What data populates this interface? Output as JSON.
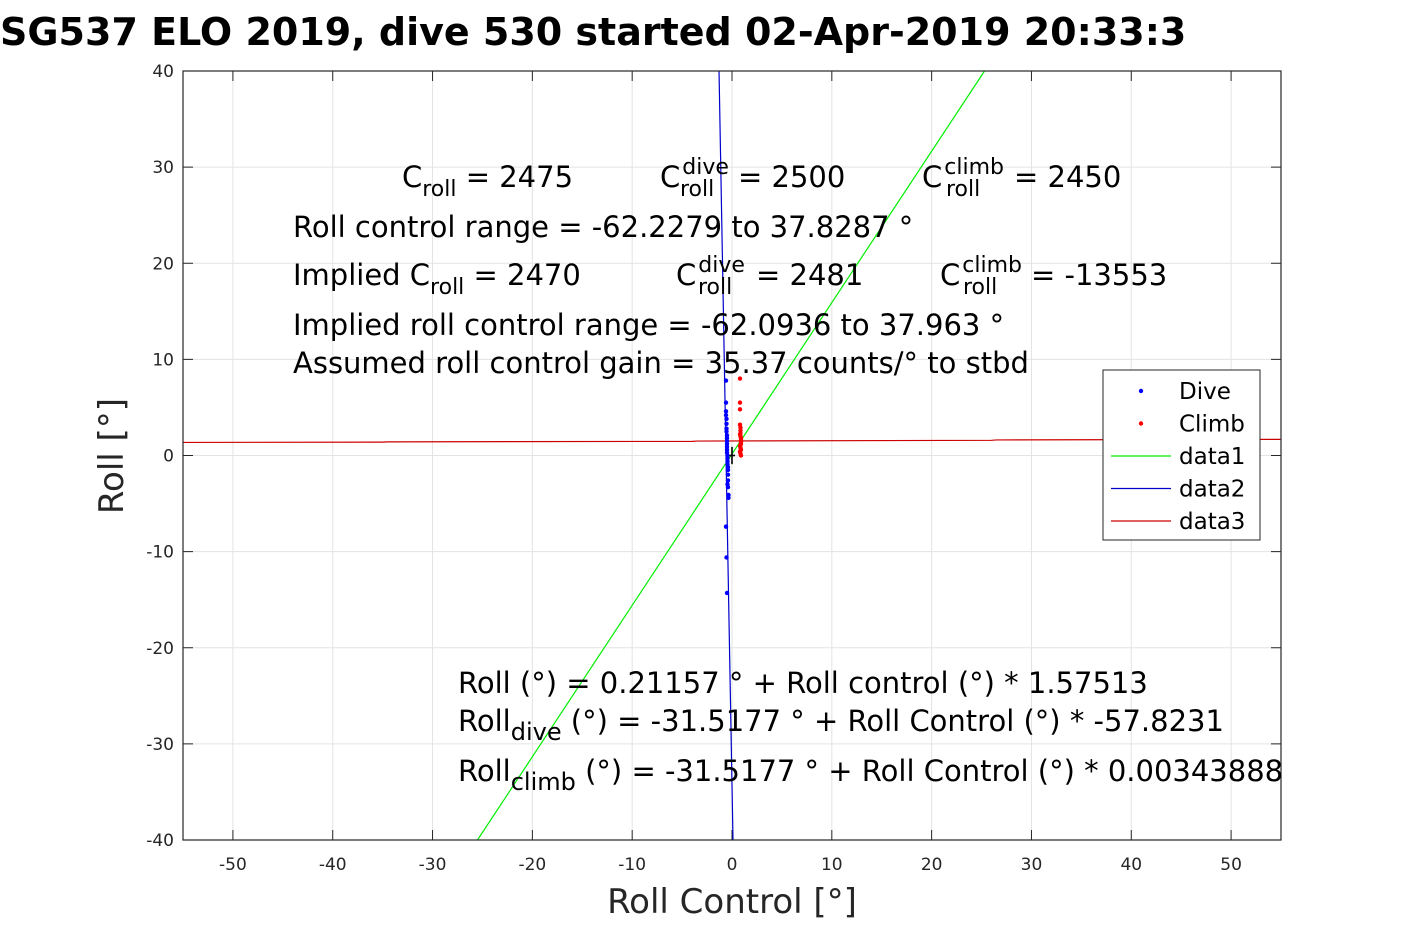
{
  "chart_data": {
    "type": "scatter",
    "title": "SG537 ELO 2019, dive 530 started 02-Apr-2019 20:33:3",
    "xlabel": "Roll Control [°]",
    "ylabel": "Roll [°]",
    "xlim": [
      -55,
      55
    ],
    "ylim": [
      -40,
      40
    ],
    "xticks": [
      -50,
      -40,
      -30,
      -20,
      -10,
      0,
      10,
      20,
      30,
      40,
      50
    ],
    "yticks": [
      -40,
      -30,
      -20,
      -10,
      0,
      10,
      20,
      30,
      40
    ],
    "xtick_labels": [
      "-50",
      "-40",
      "-30",
      "-20",
      "-10",
      "0",
      "10",
      "20",
      "30",
      "40",
      "50"
    ],
    "ytick_labels": [
      "-40",
      "-30",
      "-20",
      "-10",
      "0",
      "10",
      "20",
      "30",
      "40"
    ],
    "grid": true,
    "legend_position": "right",
    "series": [
      {
        "name": "Dive",
        "kind": "points",
        "color": "#0000ff",
        "x": [
          -0.6,
          -0.6,
          -0.6,
          -0.6,
          -0.55,
          -0.55,
          -0.55,
          -0.55,
          -0.5,
          -0.5,
          -0.5,
          -0.5,
          -0.5,
          -0.5,
          -0.5,
          -0.45,
          -0.45,
          -0.45,
          -0.45,
          -0.4,
          -0.4,
          -0.4,
          -0.4,
          -0.4,
          -0.35,
          -0.35,
          -0.6,
          -0.55,
          -0.5,
          -0.45
        ],
        "y": [
          7.8,
          5.5,
          4.6,
          4.2,
          3.8,
          3.3,
          2.8,
          2.5,
          2.1,
          1.8,
          1.5,
          1.2,
          0.9,
          0.6,
          0.3,
          0.0,
          -0.3,
          -0.6,
          -0.9,
          -1.2,
          -1.5,
          -2.0,
          -2.6,
          -3.3,
          -4.1,
          -4.4,
          -7.4,
          -10.6,
          -14.3,
          -3.0
        ]
      },
      {
        "name": "Climb",
        "kind": "points",
        "color": "#ff0000",
        "x": [
          0.8,
          0.8,
          0.8,
          0.8,
          0.85,
          0.85,
          0.85,
          0.85,
          0.9,
          0.9,
          0.9,
          0.9,
          0.8,
          0.85,
          0.9,
          0.8,
          0.85,
          0.9,
          0.8,
          0.85
        ],
        "y": [
          8.0,
          5.5,
          4.8,
          3.2,
          2.9,
          2.6,
          2.3,
          2.0,
          1.8,
          1.6,
          1.4,
          1.2,
          1.0,
          0.8,
          0.6,
          0.4,
          0.2,
          0.0,
          2.2,
          1.1
        ]
      },
      {
        "name": "data1",
        "kind": "line",
        "color": "#00ee00",
        "x": [
          -25.5,
          25.3
        ],
        "y": [
          -40,
          40
        ]
      },
      {
        "name": "data2",
        "kind": "line",
        "color": "#0000cc",
        "x": [
          -1.3,
          0.1
        ],
        "y": [
          40,
          -40
        ]
      },
      {
        "name": "data3",
        "kind": "line",
        "color": "#cc0000",
        "x": [
          -55,
          -35,
          -34.5,
          -4,
          -3.5,
          26,
          26.5,
          55
        ],
        "y": [
          1.36,
          1.39,
          1.42,
          1.47,
          1.5,
          1.58,
          1.62,
          1.68
        ]
      },
      {
        "name": "",
        "kind": "line",
        "color": "#000000",
        "x": [
          -0.3,
          0.3
        ],
        "y": [
          0,
          0
        ]
      },
      {
        "name": "",
        "kind": "line",
        "color": "#000000",
        "x": [
          0,
          0
        ],
        "y": [
          -0.9,
          0.9
        ]
      }
    ],
    "annotations": {
      "c_roll": {
        "base": "C",
        "sub": "roll",
        "rest": " = 2475"
      },
      "c_roll_dive": {
        "base": "C",
        "sup": "dive",
        "sub": "roll",
        "rest": " = 2500"
      },
      "c_roll_climb": {
        "base": "C",
        "sup": "climb",
        "sub": "roll",
        "rest": " = 2450"
      },
      "roll_control_range": "Roll control range = -62.2279 to 37.8287 °",
      "implied_c_roll": {
        "base": "Implied C",
        "sub": "roll",
        "rest": " = 2470"
      },
      "implied_c_roll_dive": {
        "base": "C",
        "sup": "dive",
        "sub": "roll",
        "rest": " = 2481"
      },
      "implied_c_roll_climb": {
        "base": "C",
        "sup": "climb",
        "sub": "roll",
        "rest": " = -13553"
      },
      "implied_range": "Implied roll control range = -62.0936 to 37.963 °",
      "gain": "Assumed roll control gain = 35.37 counts/° to stbd",
      "fit_all": "Roll (°) = 0.21157 ° + Roll control (°) * 1.57513",
      "fit_dive": {
        "base": "Roll",
        "sub": "dive",
        "rest": " (°) = -31.5177 ° + Roll Control (°) * -57.8231"
      },
      "fit_climb": {
        "base": "Roll",
        "sub": "climb",
        "rest": " (°) = -31.5177 ° + Roll Control (°) * 0.00343888"
      }
    }
  }
}
